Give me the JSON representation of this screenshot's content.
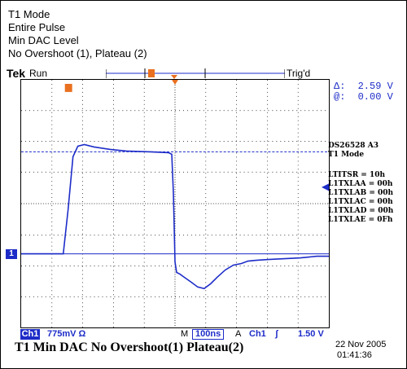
{
  "annotation": {
    "lines": [
      "T1 Mode",
      "Entire Pulse",
      "Min DAC Level",
      "No Overshoot (1), Plateau (2)"
    ]
  },
  "scope": {
    "brand": "Tek",
    "run_state": "Run",
    "trigger_state": "Trig'd"
  },
  "cursors": {
    "delta_label": "Δ:",
    "delta_value": "2.59 V",
    "at_label": "@:",
    "at_value": "0.00 V"
  },
  "device": {
    "lines": [
      "DS26528  A3",
      "T1 Mode"
    ]
  },
  "registers": [
    "LTITSR = 10h",
    "L1TXLAA = 00h",
    "L1TXLAB = 00h",
    "L1TXLAC = 00h",
    "L1TXLAD = 00h",
    "L1TXLAE = 0Fh"
  ],
  "channel": {
    "label": "Ch1",
    "scale": "775mV",
    "impedance_symbol": "Ω",
    "marker": "1"
  },
  "timebase": {
    "mode": "M",
    "value": "100ns"
  },
  "trigger": {
    "mode": "A",
    "source": "Ch1",
    "slope_symbol": "ʃ",
    "level": "1.50 V"
  },
  "caption": "T1 Min DAC No Overshoot(1) Plateau(2)",
  "timestamp": {
    "date": "22 Nov 2005",
    "time": "01:41:36"
  },
  "markers": {
    "trigger_pos": "T",
    "bar_cursor": "U"
  },
  "colors": {
    "trace": "#1d2cc8",
    "accent": "#e87020",
    "grid": "#000000"
  }
}
